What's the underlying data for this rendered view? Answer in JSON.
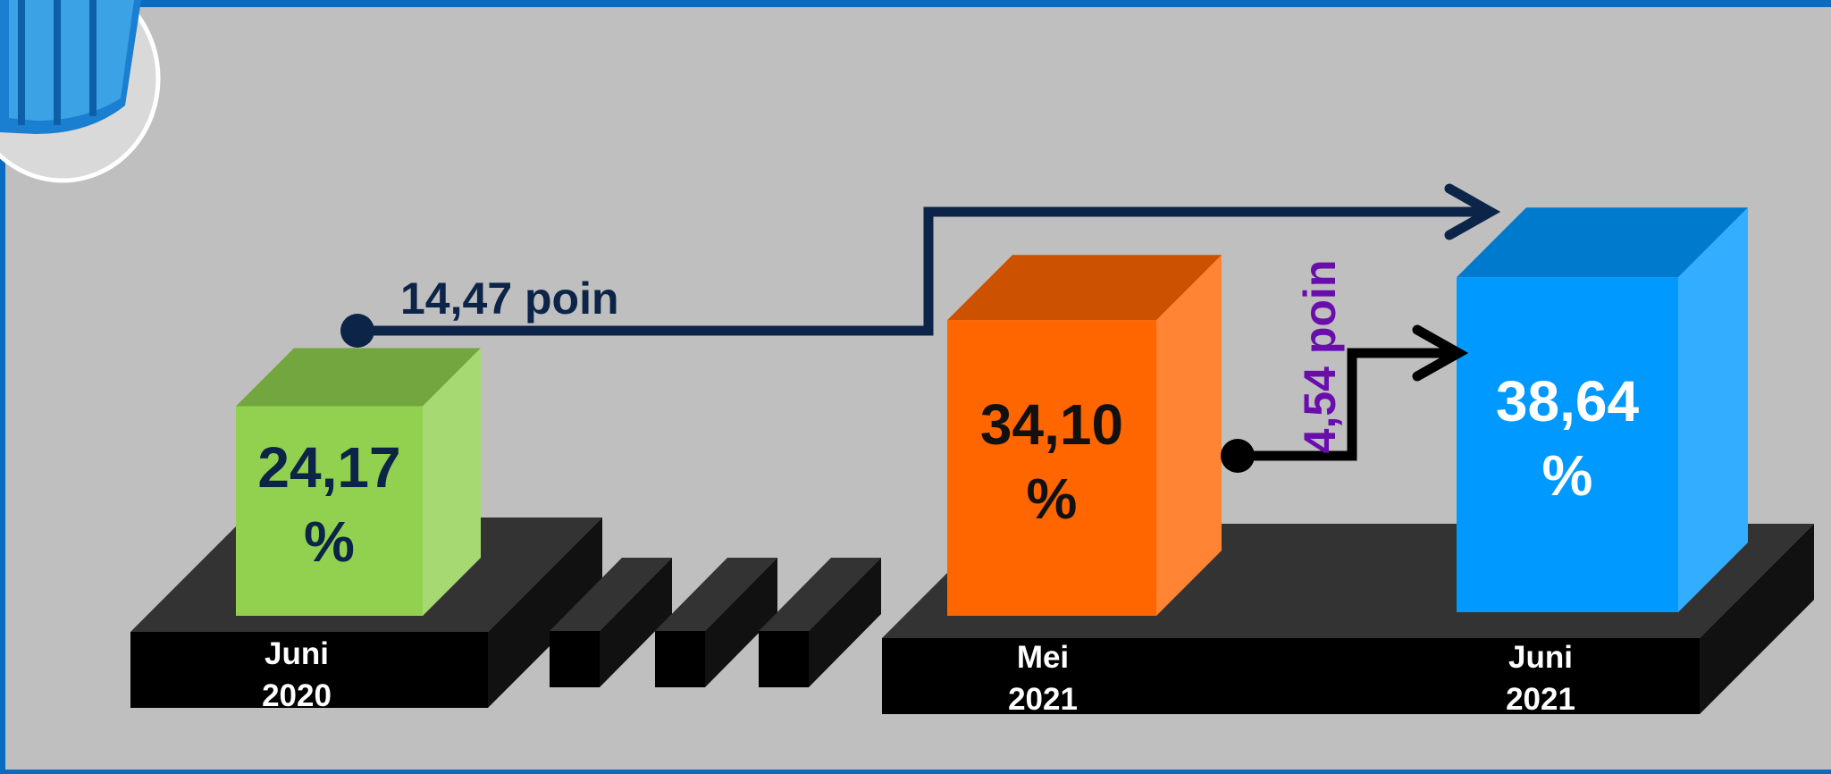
{
  "chart_data": {
    "type": "bar",
    "categories": [
      "Juni 2020",
      "Mei 2021",
      "Juni 2021"
    ],
    "values": [
      24.17,
      34.1,
      38.64
    ],
    "value_labels": [
      "24,17 %",
      "34,10 %",
      "38,64 %"
    ],
    "colors": [
      "#92d050",
      "#ff6600",
      "#0099ff"
    ],
    "label_colors": [
      "#0b2448",
      "#111111",
      "#ffffff"
    ],
    "annotations": [
      "14,47 poin",
      "4,54 poin"
    ]
  }
}
